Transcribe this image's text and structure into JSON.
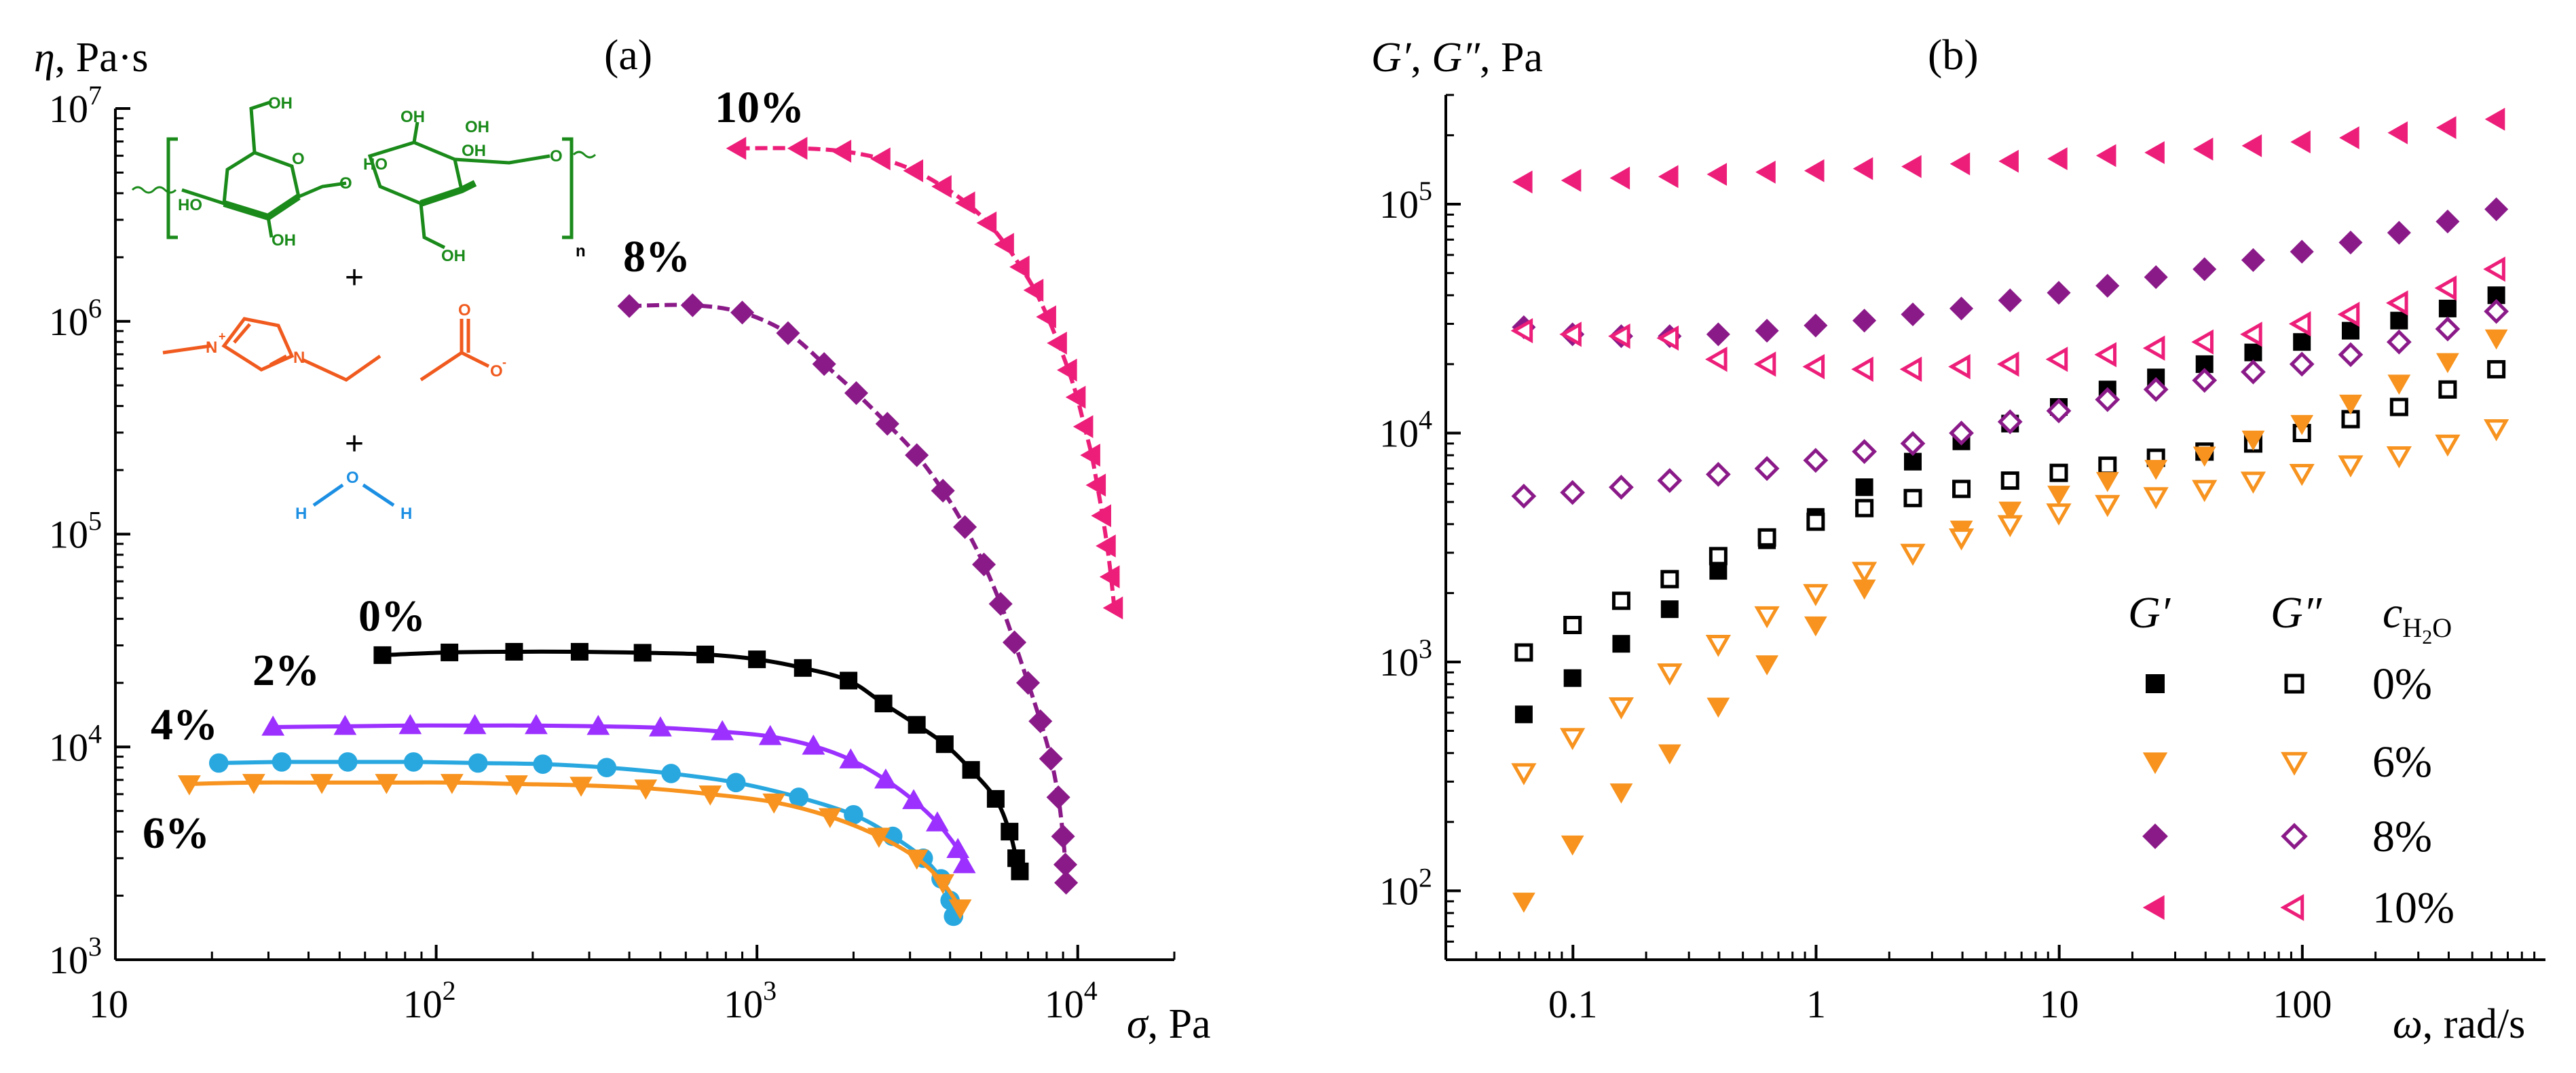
{
  "colors": {
    "black": "#000000",
    "orange": "#F7931E",
    "purple": "#8B1A89",
    "magenta": "#EC1E79",
    "violet": "#9B30FF",
    "blue": "#29A8E0",
    "green": "#1A8A1A",
    "red_orange": "#F05A1E",
    "water_blue": "#1C8FE3"
  },
  "chart_data": [
    {
      "type": "line",
      "panel": "a",
      "title": "(a)",
      "xlabel": "σ, Pa",
      "ylabel": "η, Pa·s",
      "xscale": "log",
      "yscale": "log",
      "xlim": [
        10,
        20000
      ],
      "ylim": [
        1000,
        10000000
      ],
      "x_ticks": [
        {
          "value": 10,
          "base": "10",
          "exp": ""
        },
        {
          "value": 100,
          "base": "10",
          "exp": "2"
        },
        {
          "value": 1000,
          "base": "10",
          "exp": "3"
        },
        {
          "value": 10000,
          "base": "10",
          "exp": "4"
        }
      ],
      "y_ticks": [
        {
          "value": 1000,
          "base": "10",
          "exp": "3"
        },
        {
          "value": 10000,
          "base": "10",
          "exp": "4"
        },
        {
          "value": 100000,
          "base": "10",
          "exp": "5"
        },
        {
          "value": 1000000,
          "base": "10",
          "exp": "6"
        },
        {
          "value": 10000000,
          "base": "10",
          "exp": "7"
        }
      ],
      "series": [
        {
          "name": "0%",
          "label": "0%",
          "color": "#000000",
          "marker": "square",
          "dashed": false,
          "x": [
            68,
            110,
            175,
            280,
            440,
            690,
            1000,
            1390,
            1930,
            2480,
            3150,
            3850,
            4650,
            5550,
            6130,
            6430,
            6600
          ],
          "y": [
            27000,
            27800,
            28000,
            28000,
            27700,
            27200,
            25800,
            23500,
            20500,
            16000,
            12700,
            10300,
            7800,
            5700,
            4000,
            3000,
            2600
          ]
        },
        {
          "name": "2%",
          "label": "2%",
          "color": "#9B30FF",
          "marker": "triangle-up",
          "dashed": false,
          "x": [
            31,
            52,
            83,
            132,
            205,
            320,
            500,
            780,
            1100,
            1500,
            1960,
            2520,
            3080,
            3650,
            4230,
            4430
          ],
          "y": [
            12400,
            12500,
            12600,
            12600,
            12600,
            12500,
            12300,
            11800,
            11200,
            10100,
            8700,
            7000,
            5600,
            4400,
            3300,
            2800
          ]
        },
        {
          "name": "4%",
          "label": "4%",
          "color": "#29A8E0",
          "marker": "circle",
          "dashed": false,
          "x": [
            21,
            33,
            53,
            85,
            135,
            215,
            340,
            540,
            860,
            1350,
            2000,
            2650,
            3300,
            3750,
            4000,
            4100
          ],
          "y": [
            8400,
            8500,
            8500,
            8500,
            8400,
            8300,
            8000,
            7500,
            6800,
            5800,
            4800,
            3800,
            3000,
            2400,
            1900,
            1600
          ]
        },
        {
          "name": "6%",
          "label": "6%",
          "color": "#F7931E",
          "marker": "triangle-down",
          "dashed": false,
          "x": [
            17,
            27,
            44,
            70,
            112,
            178,
            283,
            450,
            715,
            1130,
            1690,
            2400,
            3150,
            3800,
            4300
          ],
          "y": [
            6700,
            6800,
            6800,
            6800,
            6800,
            6700,
            6600,
            6400,
            6000,
            5500,
            4700,
            3800,
            3000,
            2300,
            1750
          ]
        },
        {
          "name": "8%",
          "label": "8%",
          "color": "#8B1A89",
          "marker": "diamond",
          "dashed": true,
          "x": [
            400,
            630,
            900,
            1250,
            1620,
            2040,
            2550,
            3150,
            3800,
            4450,
            5100,
            5750,
            6350,
            7000,
            7650,
            8250,
            8700,
            9000,
            9150,
            9200
          ],
          "y": [
            1180000,
            1190000,
            1100000,
            880000,
            630000,
            460000,
            330000,
            235000,
            160000,
            108000,
            72000,
            47000,
            31000,
            20000,
            13200,
            8800,
            5800,
            3800,
            2800,
            2300
          ]
        },
        {
          "name": "10%",
          "label": "10%",
          "color": "#EC1E79",
          "marker": "triangle-left",
          "dashed": true,
          "x": [
            870,
            1350,
            1850,
            2450,
            3100,
            3800,
            4500,
            5250,
            5950,
            6650,
            7350,
            8050,
            8700,
            9350,
            9950,
            10500,
            11050,
            11500,
            11950,
            12350,
            12700,
            13000
          ],
          "y": [
            6500000,
            6500000,
            6300000,
            5800000,
            5100000,
            4300000,
            3600000,
            2900000,
            2300000,
            1800000,
            1400000,
            1050000,
            790000,
            590000,
            440000,
            320000,
            235000,
            170000,
            122000,
            88000,
            63000,
            45000
          ]
        }
      ]
    },
    {
      "type": "scatter",
      "panel": "b",
      "title": "(b)",
      "xlabel": "ω, rad/s",
      "ylabel": "G′, G″, Pa",
      "xscale": "log",
      "yscale": "log",
      "xlim": [
        0.03,
        1000
      ],
      "ylim": [
        50,
        300000
      ],
      "x_ticks": [
        {
          "value": 0.1,
          "label": "0.1"
        },
        {
          "value": 1,
          "label": "1"
        },
        {
          "value": 10,
          "label": "10"
        },
        {
          "value": 100,
          "label": "100"
        }
      ],
      "y_ticks": [
        {
          "value": 100,
          "base": "10",
          "exp": "2"
        },
        {
          "value": 1000,
          "base": "10",
          "exp": "3"
        },
        {
          "value": 10000,
          "base": "10",
          "exp": "4"
        },
        {
          "value": 100000,
          "base": "10",
          "exp": "5"
        }
      ],
      "omega": [
        0.0628,
        0.0996,
        0.158,
        0.25,
        0.396,
        0.628,
        0.996,
        1.58,
        2.5,
        3.96,
        6.28,
        9.96,
        15.8,
        25,
        39.6,
        62.8,
        99.6,
        158,
        250,
        396,
        628
      ],
      "series": [
        {
          "name": "G′ 0%",
          "color": "#000000",
          "marker": "square",
          "filled": true,
          "y": [
            590,
            850,
            1200,
            1700,
            2500,
            3400,
            4300,
            5800,
            7500,
            9200,
            11000,
            13000,
            15500,
            17500,
            20000,
            22500,
            25000,
            28000,
            31000,
            35000,
            40000
          ]
        },
        {
          "name": "G″ 0%",
          "color": "#000000",
          "marker": "square",
          "filled": false,
          "y": [
            1100,
            1450,
            1850,
            2300,
            2900,
            3500,
            4100,
            4700,
            5200,
            5700,
            6200,
            6700,
            7200,
            7800,
            8300,
            9000,
            10000,
            11500,
            13000,
            15500,
            19000
          ]
        },
        {
          "name": "G′ 6%",
          "color": "#F7931E",
          "marker": "triangle-down",
          "filled": true,
          "y": [
            90,
            160,
            270,
            400,
            640,
            980,
            1450,
            2100,
            3000,
            3800,
            4600,
            5400,
            6200,
            7000,
            8000,
            9400,
            11000,
            13500,
            16500,
            20500,
            26000
          ]
        },
        {
          "name": "G″ 6%",
          "color": "#F7931E",
          "marker": "triangle-down",
          "filled": false,
          "y": [
            330,
            470,
            640,
            900,
            1200,
            1600,
            2000,
            2500,
            3000,
            3500,
            4000,
            4500,
            4900,
            5300,
            5700,
            6200,
            6700,
            7300,
            8000,
            9000,
            10500
          ]
        },
        {
          "name": "G′ 8%",
          "color": "#8B1A89",
          "marker": "diamond",
          "filled": true,
          "y": [
            29000,
            27000,
            26500,
            26500,
            27000,
            28000,
            29500,
            31000,
            33000,
            35000,
            38000,
            41000,
            44000,
            48000,
            52000,
            57000,
            62000,
            68000,
            75000,
            84000,
            95000
          ]
        },
        {
          "name": "G″ 8%",
          "color": "#8B1A89",
          "marker": "diamond",
          "filled": false,
          "y": [
            5300,
            5500,
            5800,
            6200,
            6600,
            7000,
            7600,
            8300,
            9000,
            10000,
            11200,
            12500,
            14000,
            15500,
            17000,
            18500,
            20000,
            22000,
            25000,
            28500,
            34000
          ]
        },
        {
          "name": "G′ 10%",
          "color": "#EC1E79",
          "marker": "triangle-left",
          "filled": true,
          "y": [
            125000,
            127000,
            130000,
            132000,
            135000,
            138000,
            140000,
            143000,
            146000,
            150000,
            154000,
            158000,
            163000,
            168000,
            174000,
            180000,
            187000,
            195000,
            205000,
            216000,
            235000
          ]
        },
        {
          "name": "G″ 10%",
          "color": "#EC1E79",
          "marker": "triangle-left",
          "filled": false,
          "y": [
            28000,
            27000,
            26500,
            26000,
            21000,
            20000,
            19500,
            19000,
            19000,
            19500,
            20000,
            21000,
            22000,
            23500,
            25000,
            27000,
            30000,
            33000,
            37000,
            43000,
            52000
          ]
        }
      ],
      "legend": {
        "header_gp": "G′",
        "header_gpp": "G″",
        "header_c": "c",
        "header_c_sub": "H",
        "header_c_sub2": "2",
        "header_c_sub3": "O",
        "rows": [
          {
            "label": "0%",
            "color": "#000000",
            "marker": "square"
          },
          {
            "label": "6%",
            "color": "#F7931E",
            "marker": "triangle-down"
          },
          {
            "label": "8%",
            "color": "#8B1A89",
            "marker": "diamond"
          },
          {
            "label": "10%",
            "color": "#EC1E79",
            "marker": "triangle-left"
          }
        ]
      }
    }
  ],
  "molecule": {
    "cellulose_atoms": [
      "OH",
      "OH",
      "HO",
      "OH",
      "HO",
      "OH",
      "OH",
      "OH",
      "O",
      "O",
      "O",
      "n"
    ],
    "plus_1": "+",
    "plus_2": "+",
    "imidazolium_atoms": [
      "N",
      "+",
      "N"
    ],
    "acetate_atoms": [
      "O",
      "O",
      "-"
    ],
    "water_atoms": [
      "O",
      "H",
      "H"
    ]
  }
}
